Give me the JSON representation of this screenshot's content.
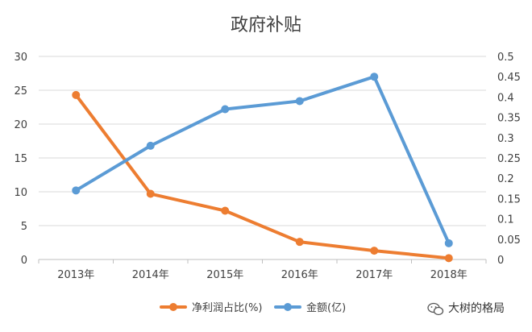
{
  "chart_data": {
    "type": "line",
    "title": "政府补贴",
    "categories": [
      "2013年",
      "2014年",
      "2015年",
      "2016年",
      "2017年",
      "2018年"
    ],
    "series": [
      {
        "name": "净利润占比(%)",
        "axis": "left",
        "color": "#ED7D31",
        "values": [
          24.3,
          9.7,
          7.2,
          2.6,
          1.3,
          0.2
        ]
      },
      {
        "name": "金额(亿)",
        "axis": "right",
        "color": "#5B9BD5",
        "values": [
          0.17,
          0.28,
          0.37,
          0.39,
          0.45,
          0.04
        ]
      }
    ],
    "y_left": {
      "lim": [
        0,
        30
      ],
      "ticks": [
        "0",
        "5",
        "10",
        "15",
        "20",
        "25",
        "30"
      ]
    },
    "y_right": {
      "lim": [
        0,
        0.5
      ],
      "ticks": [
        "0",
        "0.05",
        "0.1",
        "0.15",
        "0.2",
        "0.25",
        "0.3",
        "0.35",
        "0.4",
        "0.45",
        "0.5"
      ]
    },
    "grid": true,
    "legend": "bottom"
  },
  "watermark": {
    "text": "大树的格局",
    "icon": "wechat-icon"
  }
}
